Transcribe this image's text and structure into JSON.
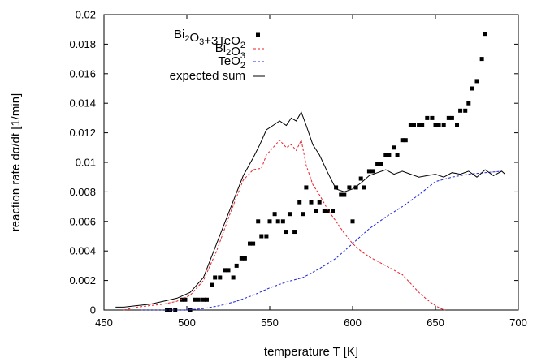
{
  "chart_data": {
    "type": "scatter",
    "xlabel": "temperature T [K]",
    "ylabel": "reaction rate dα/dt [1/min]",
    "xlim": [
      450,
      700
    ],
    "ylim": [
      0,
      0.02
    ],
    "xticks": [
      "450",
      "500",
      "550",
      "600",
      "650",
      "700"
    ],
    "yticks": [
      "0",
      "0.002",
      "0.004",
      "0.006",
      "0.008",
      "0.01",
      "0.012",
      "0.014",
      "0.016",
      "0.018",
      "0.02"
    ],
    "legend_position": "top-left",
    "series": [
      {
        "name": "Bi2O3+3TeO2",
        "style": "markers",
        "color": "#000000",
        "x": [
          488,
          490,
          493,
          497,
          499,
          502,
          505,
          507,
          510,
          512,
          515,
          517,
          520,
          523,
          525,
          528,
          530,
          533,
          535,
          538,
          540,
          543,
          545,
          548,
          550,
          553,
          555,
          558,
          560,
          562,
          565,
          568,
          570,
          572,
          575,
          578,
          580,
          583,
          585,
          588,
          590,
          593,
          595,
          598,
          600,
          602,
          605,
          607,
          610,
          612,
          615,
          617,
          620,
          622,
          625,
          627,
          630,
          632,
          635,
          637,
          640,
          642,
          645,
          648,
          650,
          652,
          655,
          658,
          660,
          663,
          665,
          668,
          670,
          672,
          675,
          678,
          680
        ],
        "y": [
          0,
          0,
          0,
          0.0007,
          0.0007,
          0,
          0.0007,
          0.0007,
          0.0007,
          0.0007,
          0.0017,
          0.0022,
          0.0022,
          0.0027,
          0.0027,
          0.0022,
          0.003,
          0.0035,
          0.0035,
          0.0045,
          0.0045,
          0.006,
          0.005,
          0.005,
          0.006,
          0.0065,
          0.006,
          0.006,
          0.0053,
          0.0065,
          0.0053,
          0.0073,
          0.0065,
          0.0083,
          0.0073,
          0.0067,
          0.0073,
          0.0067,
          0.0067,
          0.0067,
          0.0083,
          0.0078,
          0.0078,
          0.0083,
          0.006,
          0.0083,
          0.0089,
          0.0083,
          0.0094,
          0.0094,
          0.0099,
          0.0099,
          0.0105,
          0.0105,
          0.011,
          0.0105,
          0.0115,
          0.0115,
          0.0125,
          0.0125,
          0.0125,
          0.0125,
          0.013,
          0.013,
          0.0125,
          0.0125,
          0.0125,
          0.013,
          0.013,
          0.0125,
          0.0135,
          0.0135,
          0.014,
          0.015,
          0.0155,
          0.017,
          0.0187
        ]
      },
      {
        "name": "Bi2O3",
        "style": "dashed",
        "color": "#e8202a",
        "x": [
          462,
          470,
          478,
          486,
          494,
          502,
          510,
          518,
          526,
          534,
          540,
          545,
          548,
          552,
          556,
          560,
          563,
          566,
          569,
          572,
          576,
          580,
          585,
          590,
          595,
          600,
          605,
          610,
          615,
          620,
          625,
          630,
          635,
          640,
          645,
          650,
          653,
          656
        ],
        "y": [
          0,
          0.0002,
          0.0003,
          0.0004,
          0.0006,
          0.001,
          0.002,
          0.004,
          0.0065,
          0.0088,
          0.0095,
          0.0096,
          0.0105,
          0.011,
          0.0115,
          0.011,
          0.0112,
          0.0108,
          0.0115,
          0.0098,
          0.0085,
          0.0078,
          0.0068,
          0.006,
          0.0052,
          0.0045,
          0.004,
          0.0036,
          0.0033,
          0.003,
          0.0027,
          0.0024,
          0.0018,
          0.0012,
          0.0007,
          0.0003,
          0.0001,
          0
        ]
      },
      {
        "name": "TeO2",
        "style": "dashed",
        "color": "#2026d8",
        "x": [
          472,
          480,
          490,
          500,
          510,
          520,
          530,
          540,
          550,
          560,
          570,
          580,
          590,
          600,
          610,
          620,
          630,
          640,
          650,
          660,
          670,
          680,
          690
        ],
        "y": [
          0,
          0,
          0,
          0,
          0.0001,
          0.0003,
          0.0006,
          0.001,
          0.0015,
          0.0019,
          0.0022,
          0.0028,
          0.0035,
          0.0045,
          0.0055,
          0.0063,
          0.007,
          0.0078,
          0.0087,
          0.009,
          0.0092,
          0.0093,
          0.0094
        ]
      },
      {
        "name": "expected sum",
        "style": "solid",
        "color": "#000000",
        "x": [
          457,
          462,
          470,
          478,
          486,
          494,
          502,
          510,
          518,
          526,
          534,
          540,
          544,
          548,
          552,
          556,
          560,
          563,
          566,
          569,
          572,
          576,
          580,
          585,
          590,
          595,
          600,
          605,
          610,
          615,
          620,
          625,
          630,
          635,
          640,
          645,
          650,
          655,
          660,
          665,
          670,
          675,
          680,
          685,
          690,
          692
        ],
        "y": [
          0.0002,
          0.0002,
          0.0003,
          0.0004,
          0.0006,
          0.0008,
          0.0012,
          0.0022,
          0.0045,
          0.0068,
          0.0091,
          0.0103,
          0.0112,
          0.0122,
          0.0125,
          0.0128,
          0.0125,
          0.013,
          0.0128,
          0.0134,
          0.0125,
          0.0112,
          0.0105,
          0.0093,
          0.0082,
          0.008,
          0.0082,
          0.0086,
          0.0091,
          0.0093,
          0.0095,
          0.0092,
          0.0094,
          0.0092,
          0.009,
          0.0091,
          0.0092,
          0.009,
          0.0093,
          0.0092,
          0.0094,
          0.009,
          0.0095,
          0.0091,
          0.0094,
          0.0092
        ]
      }
    ]
  },
  "legend": [
    {
      "base": "Bi",
      "sub1": "2",
      "mid": "O",
      "sub2": "3",
      "tail": "+3TeO",
      "sub3": "2",
      "marker": "square"
    },
    {
      "base": "Bi",
      "sub1": "2",
      "mid": "O",
      "sub2": "3",
      "tail": "",
      "sub3": "",
      "marker": "red-dash"
    },
    {
      "base": "TeO",
      "sub1": "2",
      "mid": "",
      "sub2": "",
      "tail": "",
      "sub3": "",
      "marker": "blue-dash"
    },
    {
      "base": "expected sum",
      "sub1": "",
      "mid": "",
      "sub2": "",
      "tail": "",
      "sub3": "",
      "marker": "black-line"
    }
  ]
}
